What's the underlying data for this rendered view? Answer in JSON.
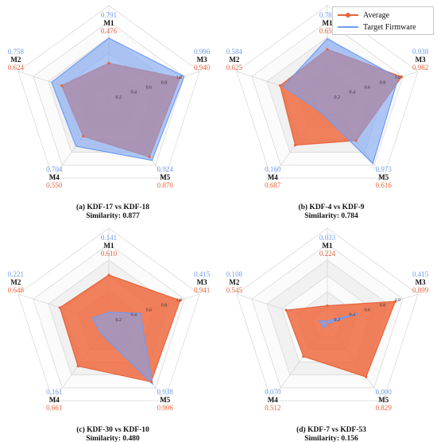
{
  "legend": {
    "average_label": "Average",
    "target_label": "Target Firmware"
  },
  "colors": {
    "average": "#e8643c",
    "average_fill": "#ef6a3f",
    "target": "#6e9df4",
    "target_fill": "#7ba4f3",
    "overlap": "#8c87c7",
    "grid": "#cfcfcf",
    "blue_text": "#6f9be9",
    "orange_text": "#e8643c"
  },
  "chart_data": [
    {
      "type": "radar",
      "axes": [
        "M1",
        "M2",
        "M3",
        "M4",
        "M5"
      ],
      "radial_ticks": [
        "0.2",
        "0.4",
        "0.6",
        "0.8",
        "1.0"
      ],
      "series": [
        {
          "name": "Target Firmware",
          "values": [
            0.791,
            0.758,
            0.996,
            0.704,
            0.924
          ],
          "labels": [
            "0.791",
            "0.758",
            "0.996",
            "0.704",
            "0.924"
          ]
        },
        {
          "name": "Average",
          "values": [
            0.476,
            0.624,
            0.94,
            0.55,
            0.87
          ],
          "labels": [
            "0.476",
            "0.624",
            "0.940",
            "0.550",
            "0.870"
          ]
        }
      ],
      "caption": "(a) KDF-17 vs KDF-18",
      "similarity": "Similarity: 0.877"
    },
    {
      "type": "radar",
      "axes": [
        "M1",
        "M2",
        "M3",
        "M4",
        "M5"
      ],
      "radial_ticks": [
        "0.2",
        "0.4",
        "0.6",
        "0.8",
        "1.0"
      ],
      "series": [
        {
          "name": "Target Firmware",
          "values": [
            0.782,
            0.584,
            0.938,
            0.16,
            0.973
          ],
          "labels": [
            "0.782",
            "0.584",
            "0.938",
            "0.160",
            "0.973"
          ]
        },
        {
          "name": "Average",
          "values": [
            0.65,
            0.625,
            0.982,
            0.687,
            0.616
          ],
          "labels": [
            "0.650",
            "0.625",
            "0.982",
            "0.687",
            "0.616"
          ]
        }
      ],
      "caption": "(b) KDF-4 vs KDF-9",
      "similarity": "Similarity: 0.784"
    },
    {
      "type": "radar",
      "axes": [
        "M1",
        "M2",
        "M3",
        "M4",
        "M5"
      ],
      "radial_ticks": [
        "0.2",
        "0.4",
        "0.6",
        "0.8",
        "1.0"
      ],
      "series": [
        {
          "name": "Target Firmware",
          "values": [
            0.141,
            0.221,
            0.415,
            0.161,
            0.938
          ],
          "labels": [
            "0.141",
            "0.221",
            "0.415",
            "0.161",
            "0.938"
          ]
        },
        {
          "name": "Average",
          "values": [
            0.61,
            0.648,
            0.941,
            0.661,
            0.906
          ],
          "labels": [
            "0.610",
            "0.648",
            "0.941",
            "0.661",
            "0.906"
          ]
        }
      ],
      "caption": "(c) KDF-30 vs KDF-10",
      "similarity": "Similarity: 0.480"
    },
    {
      "type": "radar",
      "axes": [
        "M1",
        "M2",
        "M3",
        "M4",
        "M5"
      ],
      "radial_ticks": [
        "0.2",
        "0.4",
        "0.6",
        "0.8",
        "1.0"
      ],
      "series": [
        {
          "name": "Target Firmware",
          "values": [
            0.033,
            0.108,
            0.415,
            0.07,
            0.0
          ],
          "labels": [
            "0.033",
            "0.108",
            "0.415",
            "0.070",
            "0.000"
          ]
        },
        {
          "name": "Average",
          "values": [
            0.224,
            0.545,
            0.899,
            0.512,
            0.829
          ],
          "labels": [
            "0.224",
            "0.545",
            "0.899",
            "0.512",
            "0.829"
          ]
        }
      ],
      "caption": "(d) KDF-7 vs KDF-53",
      "similarity": "Similarity: 0.156"
    }
  ]
}
